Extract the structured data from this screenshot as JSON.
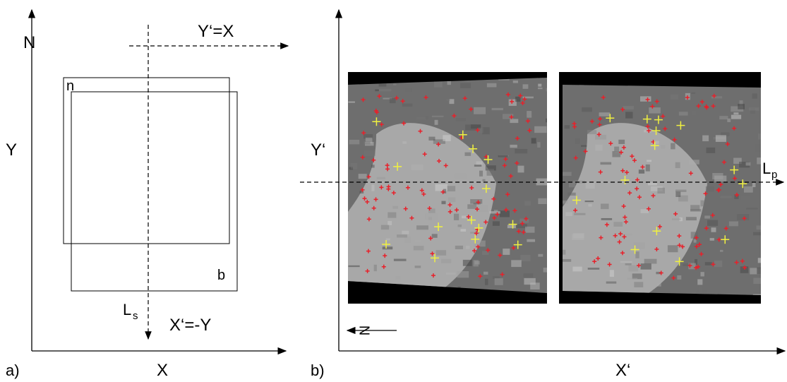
{
  "panel_a": {
    "label": "a)",
    "x_axis": "X",
    "y_axis": "Y",
    "north": "N",
    "rotated_axis": "Y‘=X",
    "image_n": "n",
    "image_b": "b",
    "line": {
      "main": "L",
      "sub": "s"
    },
    "rotated_x": "X‘=-Y"
  },
  "panel_b": {
    "label": "b)",
    "x_axis": "X‘",
    "y_axis": "Y‘",
    "north": "N",
    "line": {
      "main": "L",
      "sub": "p"
    }
  }
}
